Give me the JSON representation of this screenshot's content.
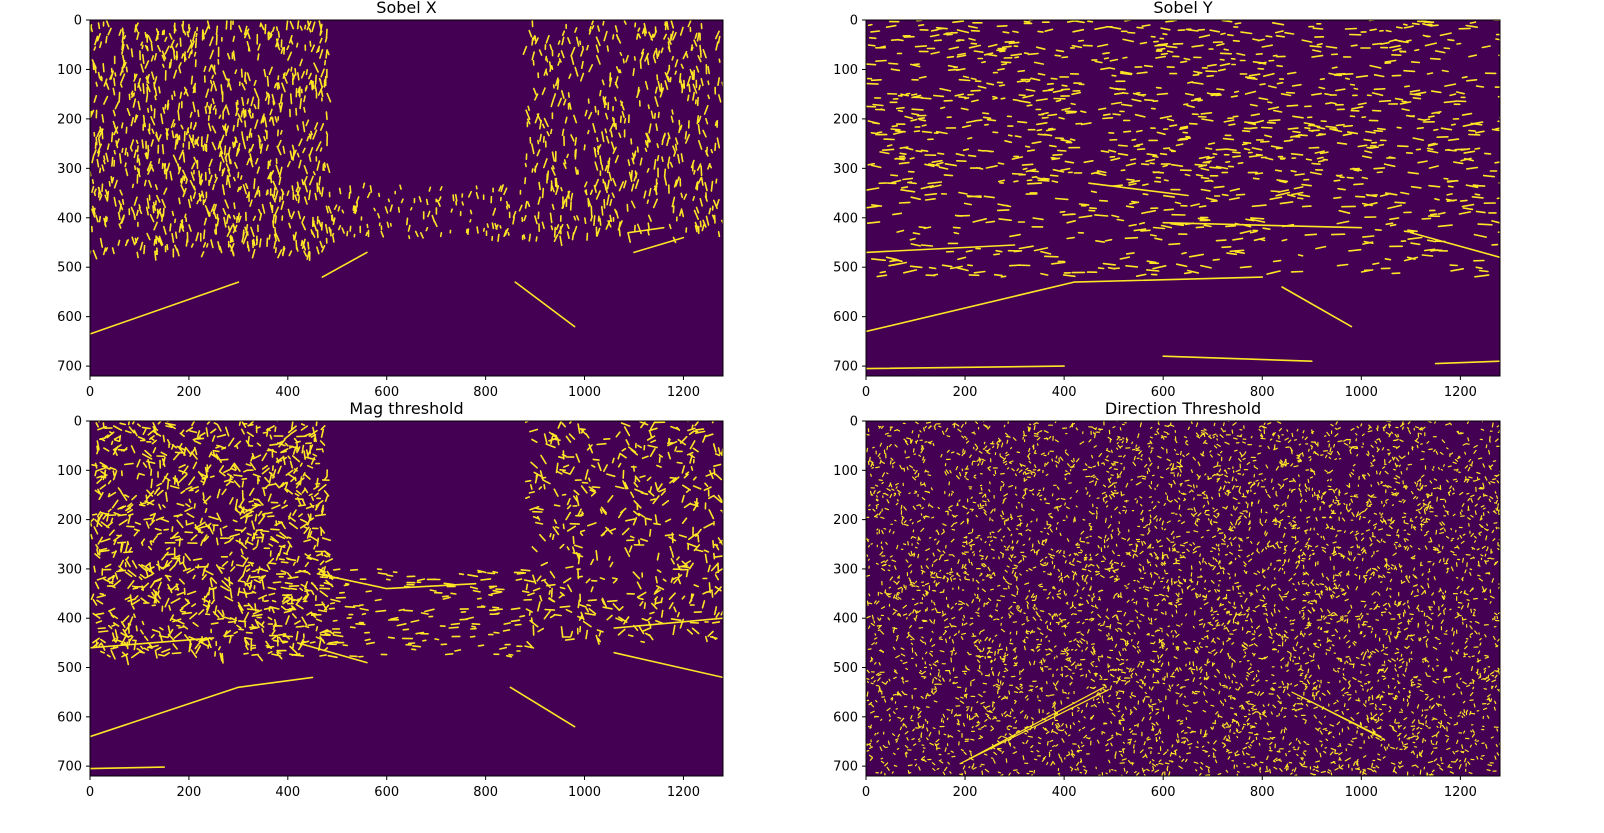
{
  "figure": {
    "background": "#ffffff",
    "colormap": {
      "low": "#440154",
      "high": "#fde725"
    }
  },
  "chart_data": [
    {
      "type": "heatmap",
      "title": "Sobel X",
      "xlim": [
        0,
        1280
      ],
      "ylim": [
        720,
        0
      ],
      "xticks": [
        0,
        200,
        400,
        600,
        800,
        1000,
        1200
      ],
      "yticks": [
        0,
        100,
        200,
        300,
        400,
        500,
        600,
        700
      ],
      "values": "binary",
      "pattern": "sobelx"
    },
    {
      "type": "heatmap",
      "title": "Sobel Y",
      "xlim": [
        0,
        1280
      ],
      "ylim": [
        720,
        0
      ],
      "xticks": [
        0,
        200,
        400,
        600,
        800,
        1000,
        1200
      ],
      "yticks": [
        0,
        100,
        200,
        300,
        400,
        500,
        600,
        700
      ],
      "values": "binary",
      "pattern": "sobely"
    },
    {
      "type": "heatmap",
      "title": "Mag threshold",
      "xlim": [
        0,
        1280
      ],
      "ylim": [
        720,
        0
      ],
      "xticks": [
        0,
        200,
        400,
        600,
        800,
        1000,
        1200
      ],
      "yticks": [
        0,
        100,
        200,
        300,
        400,
        500,
        600,
        700
      ],
      "values": "binary",
      "pattern": "mag"
    },
    {
      "type": "heatmap",
      "title": "Direction Threshold",
      "xlim": [
        0,
        1280
      ],
      "ylim": [
        720,
        0
      ],
      "xticks": [
        0,
        200,
        400,
        600,
        800,
        1000,
        1200
      ],
      "yticks": [
        0,
        100,
        200,
        300,
        400,
        500,
        600,
        700
      ],
      "values": "binary",
      "pattern": "dir"
    }
  ]
}
